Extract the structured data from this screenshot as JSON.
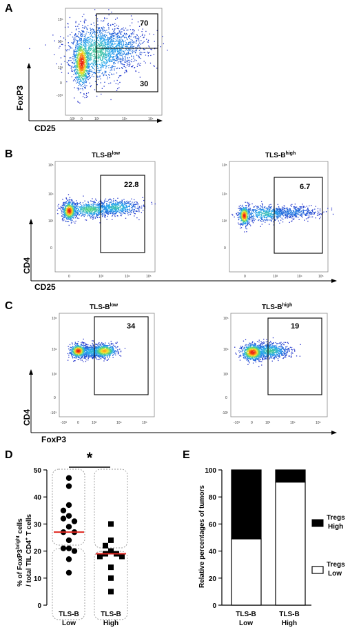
{
  "panels": {
    "A": {
      "label": "A",
      "ylabel": "FoxP3",
      "xlabel": "CD25",
      "gate_upper": "70",
      "gate_lower": "30",
      "xticks": [
        "-10³",
        "0",
        "10³",
        "10⁴",
        "10⁵"
      ],
      "yticks": [
        "10⁵",
        "10⁴",
        "10³",
        "0",
        "-10³"
      ]
    },
    "B": {
      "label": "B",
      "ylabel": "CD4",
      "xlabel": "CD25",
      "left_title_base": "TLS-B",
      "left_title_sup": "low",
      "right_title_base": "TLS-B",
      "right_title_sup": "high",
      "left_gate": "22.8",
      "right_gate": "6.7",
      "xticks": [
        "0",
        "10³",
        "10⁴",
        "10⁵"
      ],
      "yticks": [
        "10⁵",
        "10⁴",
        "10³",
        "0"
      ]
    },
    "C": {
      "label": "C",
      "ylabel": "CD4",
      "xlabel": "FoxP3",
      "left_title_base": "TLS-B",
      "left_title_sup": "low",
      "right_title_base": "TLS-B",
      "right_title_sup": "high",
      "left_gate": "34",
      "right_gate": "19",
      "xticks": [
        "-10³",
        "0",
        "10³",
        "10⁴",
        "10⁵"
      ],
      "yticks": [
        "10⁵",
        "10⁴",
        "10³",
        "0",
        "-10³"
      ]
    },
    "D": {
      "label": "D",
      "ylabel_line1": "% of FoxP3",
      "ylabel_sup": "bright",
      "ylabel_line1_end": " cells",
      "ylabel_line2": "/ total TIL CD4",
      "ylabel_sup2": "+",
      "ylabel_line2_end": " T cells",
      "significance": "*",
      "yticks": [
        "0",
        "10",
        "20",
        "30",
        "40",
        "50"
      ],
      "groups": [
        {
          "line1": "TLS-B",
          "line2": "Low"
        },
        {
          "line1": "TLS-B",
          "line2": "High"
        }
      ]
    },
    "E": {
      "label": "E",
      "ylabel": "Relative percentages of tumors",
      "yticks": [
        "0",
        "20",
        "40",
        "60",
        "80",
        "100"
      ],
      "groups": [
        {
          "line1": "TLS-B",
          "line2": "Low"
        },
        {
          "line1": "TLS-B",
          "line2": "High"
        }
      ],
      "legend": [
        {
          "line1": "Tregs",
          "line2": "High",
          "color": "#000000"
        },
        {
          "line1": "Tregs",
          "line2": "Low",
          "color": "#ffffff"
        }
      ]
    }
  },
  "chart_data": [
    {
      "type": "scatter",
      "panel": "D",
      "ylim": [
        0,
        50
      ],
      "series": [
        {
          "group": "TLS-B Low",
          "marker": "circle",
          "color": "#000000",
          "median": 27,
          "values": [
            47,
            44,
            37,
            35,
            33,
            32,
            31,
            29,
            27,
            27,
            24,
            21,
            21,
            20,
            17,
            12
          ]
        },
        {
          "group": "TLS-B High",
          "marker": "square",
          "color": "#000000",
          "median": 19,
          "values": [
            30,
            24,
            22,
            20,
            19,
            19,
            18,
            18,
            14,
            10,
            5
          ]
        }
      ],
      "median_color": "#e0261f"
    },
    {
      "type": "bar",
      "panel": "E",
      "stacked": true,
      "categories": [
        "TLS-B Low",
        "TLS-B High"
      ],
      "ylim": [
        0,
        100
      ],
      "series": [
        {
          "name": "Tregs Low",
          "color": "#ffffff",
          "values": [
            49,
            91
          ]
        },
        {
          "name": "Tregs High",
          "color": "#000000",
          "values": [
            51,
            9
          ]
        }
      ]
    }
  ]
}
